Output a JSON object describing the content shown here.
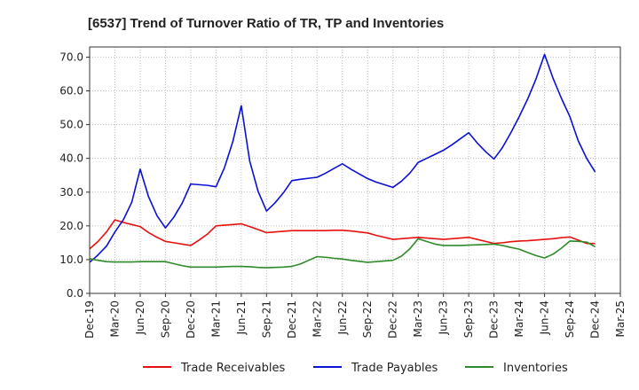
{
  "chart_data": {
    "type": "line",
    "title": "[6537]  Trend of Turnover Ratio of TR, TP and Inventories",
    "xlabel": "",
    "ylabel": "",
    "ylim": [
      0,
      73
    ],
    "yticks": [
      0,
      10,
      20,
      30,
      40,
      50,
      60,
      70
    ],
    "ytick_labels": [
      "0.0",
      "10.0",
      "20.0",
      "30.0",
      "40.0",
      "50.0",
      "60.0",
      "70.0"
    ],
    "xtick_labels": [
      "Dec-19",
      "Mar-20",
      "Jun-20",
      "Sep-20",
      "Dec-20",
      "Mar-21",
      "Jun-21",
      "Sep-21",
      "Dec-21",
      "Mar-22",
      "Jun-22",
      "Sep-22",
      "Dec-22",
      "Mar-23",
      "Jun-23",
      "Sep-23",
      "Dec-23",
      "Mar-24",
      "Jun-24",
      "Sep-24",
      "Dec-24",
      "Mar-25"
    ],
    "grid": true,
    "legend_position": "bottom",
    "x": [
      "Dec-19",
      "Jan-20",
      "Feb-20",
      "Mar-20",
      "Apr-20",
      "May-20",
      "Jun-20",
      "Jul-20",
      "Aug-20",
      "Sep-20",
      "Oct-20",
      "Nov-20",
      "Dec-20",
      "Jan-21",
      "Feb-21",
      "Mar-21",
      "Apr-21",
      "May-21",
      "Jun-21",
      "Jul-21",
      "Aug-21",
      "Sep-21",
      "Oct-21",
      "Nov-21",
      "Dec-21",
      "Jan-22",
      "Feb-22",
      "Mar-22",
      "Apr-22",
      "May-22",
      "Jun-22",
      "Jul-22",
      "Aug-22",
      "Sep-22",
      "Oct-22",
      "Nov-22",
      "Dec-22",
      "Jan-23",
      "Feb-23",
      "Mar-23",
      "Apr-23",
      "May-23",
      "Jun-23",
      "Jul-23",
      "Aug-23",
      "Sep-23",
      "Oct-23",
      "Nov-23",
      "Dec-23",
      "Jan-24",
      "Feb-24",
      "Mar-24",
      "Apr-24",
      "May-24",
      "Jun-24",
      "Jul-24",
      "Aug-24",
      "Sep-24",
      "Oct-24",
      "Nov-24",
      "Dec-24"
    ],
    "series": [
      {
        "name": "Trade Receivables",
        "color": "#e8100f",
        "values": [
          13.2,
          15.4,
          18.2,
          21.8,
          21.0,
          20.4,
          19.8,
          18.0,
          16.6,
          15.4,
          15.0,
          14.6,
          14.2,
          15.8,
          17.6,
          20.0,
          20.2,
          20.4,
          20.6,
          19.8,
          18.9,
          18.0,
          18.2,
          18.4,
          18.6,
          18.6,
          18.6,
          18.6,
          18.6,
          18.7,
          18.7,
          18.5,
          18.2,
          17.9,
          17.2,
          16.6,
          16.0,
          16.2,
          16.4,
          16.6,
          16.4,
          16.2,
          16.0,
          16.2,
          16.4,
          16.6,
          16.0,
          15.4,
          14.8,
          15.0,
          15.3,
          15.5,
          15.6,
          15.8,
          16.0,
          16.2,
          16.5,
          16.7,
          15.8,
          14.8,
          14.8
        ]
      },
      {
        "name": "Trade Payables",
        "color": "#0a10d4",
        "values": [
          9.2,
          11.4,
          14.0,
          18.2,
          21.8,
          27.0,
          36.8,
          28.6,
          23.0,
          19.4,
          22.6,
          26.8,
          32.4,
          32.2,
          32.0,
          31.6,
          37.2,
          45.0,
          55.6,
          39.2,
          30.2,
          24.4,
          26.8,
          29.8,
          33.4,
          33.8,
          34.1,
          34.4,
          35.6,
          37.0,
          38.4,
          36.8,
          35.4,
          34.0,
          33.0,
          32.2,
          31.4,
          33.2,
          35.6,
          38.8,
          40.0,
          41.2,
          42.4,
          44.0,
          45.8,
          47.6,
          44.6,
          42.0,
          39.8,
          43.2,
          47.6,
          52.4,
          57.6,
          63.6,
          70.8,
          63.8,
          57.8,
          52.4,
          45.2,
          40.0,
          36.0
        ]
      },
      {
        "name": "Inventories",
        "color": "#2f8a2a",
        "values": [
          10.3,
          9.8,
          9.4,
          9.3,
          9.3,
          9.3,
          9.4,
          9.4,
          9.4,
          9.4,
          8.8,
          8.2,
          7.8,
          7.8,
          7.8,
          7.8,
          7.9,
          8.0,
          8.0,
          7.9,
          7.7,
          7.6,
          7.7,
          7.8,
          8.0,
          8.7,
          9.8,
          10.9,
          10.7,
          10.4,
          10.2,
          9.8,
          9.5,
          9.2,
          9.4,
          9.6,
          9.8,
          11.0,
          13.2,
          16.2,
          15.4,
          14.6,
          14.2,
          14.2,
          14.2,
          14.3,
          14.4,
          14.5,
          14.6,
          14.2,
          13.6,
          13.1,
          12.1,
          11.2,
          10.5,
          11.6,
          13.4,
          15.5,
          15.4,
          15.2,
          13.8
        ]
      }
    ]
  }
}
